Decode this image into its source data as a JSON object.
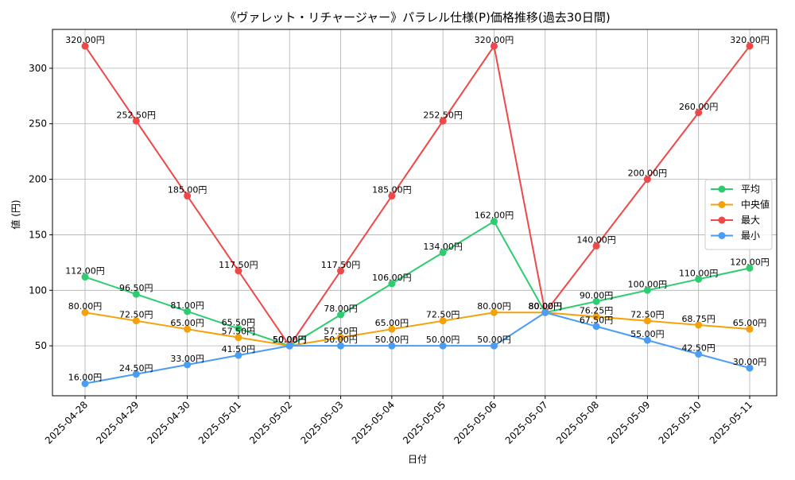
{
  "chart_data": {
    "type": "line",
    "title": "《ヴァレット・リチャージャー》パラレル仕様(P)価格推移(過去30日間)",
    "xlabel": "日付",
    "ylabel": "値 (円)",
    "categories": [
      "2025-04-28",
      "2025-04-29",
      "2025-04-30",
      "2025-05-01",
      "2025-05-02",
      "2025-05-03",
      "2025-05-04",
      "2025-05-05",
      "2025-05-06",
      "2025-05-07",
      "2025-05-08",
      "2025-05-09",
      "2025-05-10",
      "2025-05-11"
    ],
    "ylim": [
      5,
      335
    ],
    "yticks": [
      50,
      100,
      150,
      200,
      250,
      300
    ],
    "grid": true,
    "legend_position": "right",
    "label_suffix": "円",
    "series": [
      {
        "name": "平均",
        "color": "#2ecc71",
        "values": [
          112.0,
          96.5,
          81.0,
          65.5,
          50.0,
          78.0,
          106.0,
          134.0,
          162.0,
          80.0,
          90.0,
          100.0,
          110.0,
          120.0
        ]
      },
      {
        "name": "中央値",
        "color": "#f5a10a",
        "values": [
          80.0,
          72.5,
          65.0,
          57.5,
          50.0,
          57.5,
          65.0,
          72.5,
          80.0,
          80.0,
          76.25,
          72.5,
          68.75,
          65.0
        ]
      },
      {
        "name": "最大",
        "color": "#f04848",
        "values": [
          320.0,
          252.5,
          185.0,
          117.5,
          50.0,
          117.5,
          185.0,
          252.5,
          320.0,
          80.0,
          140.0,
          200.0,
          260.0,
          320.0
        ]
      },
      {
        "name": "最小",
        "color": "#4b9cf5",
        "values": [
          16.0,
          24.5,
          33.0,
          41.5,
          50.0,
          50.0,
          50.0,
          50.0,
          50.0,
          80.0,
          67.5,
          55.0,
          42.5,
          30.0
        ]
      }
    ]
  }
}
